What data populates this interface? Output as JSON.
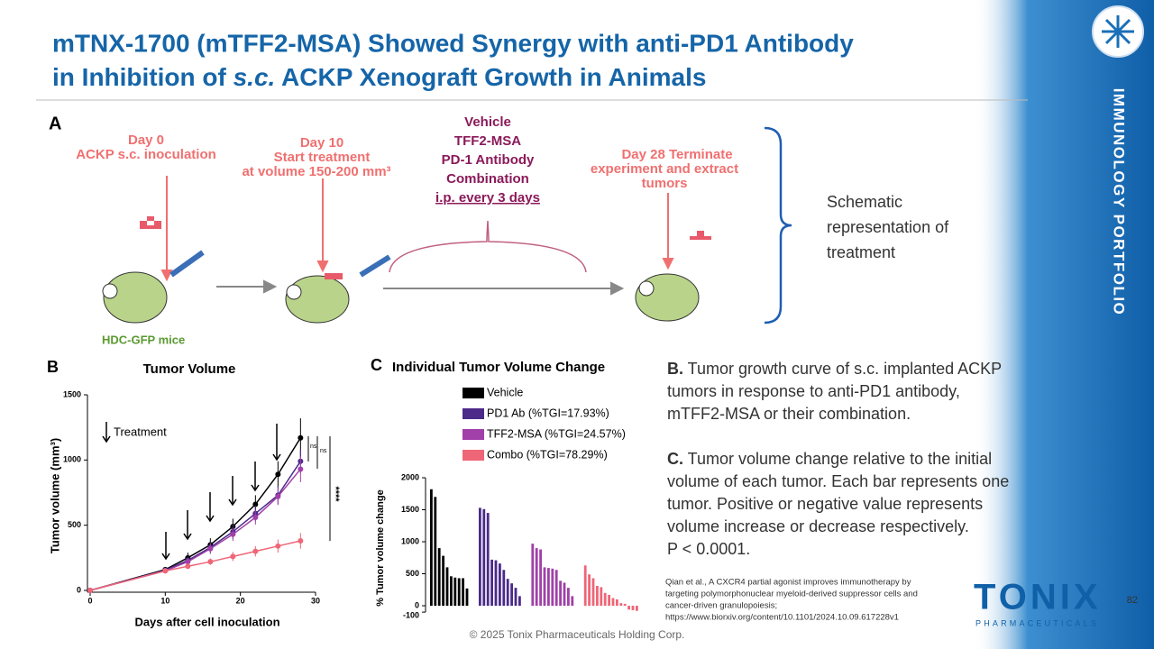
{
  "title": {
    "line1": "mTNX-1700 (mTFF2-MSA) Showed Synergy with anti-PD1 Antibody",
    "line2_start": "in Inhibition of ",
    "line2_italic": "s.c.",
    "line2_end": " ACKP Xenograft Growth in Animals"
  },
  "side_label": "IMMUNOLOGY PORTFOLIO",
  "panel_a": {
    "letter": "A",
    "day0": [
      "Day 0",
      "ACKP s.c. inoculation"
    ],
    "day10": [
      "Day 10",
      "Start treatment",
      "at volume 150-200 mm³"
    ],
    "groups": [
      "Vehicle",
      "TFF2-MSA",
      "PD-1 Antibody",
      "Combination",
      "i.p. every 3 days"
    ],
    "day28": [
      "Day 28 Terminate",
      "experiment and extract",
      "tumors"
    ],
    "mice": "HDC-GFP mice",
    "caption": [
      "Schematic",
      "representation of",
      "treatment"
    ]
  },
  "panel_b_letter": "B",
  "panel_c_letter": "C",
  "chart_data": [
    {
      "type": "line",
      "title": "Tumor Volume",
      "x_label": "Days after cell inoculation",
      "y_label": "Tumor volume (mm³)",
      "x": [
        0,
        10,
        13,
        16,
        19,
        22,
        25,
        28
      ],
      "series": [
        {
          "color": "#000000",
          "values": [
            0,
            160,
            250,
            350,
            490,
            660,
            890,
            1170
          ],
          "errors": [
            0,
            15,
            40,
            50,
            60,
            70,
            100,
            150
          ]
        },
        {
          "color": "#4b2a8a",
          "values": [
            0,
            155,
            230,
            330,
            450,
            590,
            730,
            990
          ],
          "errors": [
            0,
            15,
            30,
            45,
            55,
            60,
            70,
            90
          ]
        },
        {
          "color": "#a040a8",
          "values": [
            0,
            150,
            220,
            320,
            430,
            560,
            720,
            930
          ],
          "errors": [
            0,
            15,
            30,
            40,
            50,
            55,
            65,
            100
          ]
        },
        {
          "color": "#ee6677",
          "values": [
            0,
            150,
            185,
            220,
            260,
            300,
            340,
            380
          ],
          "errors": [
            0,
            10,
            20,
            25,
            35,
            40,
            50,
            60
          ]
        }
      ],
      "xlim": [
        0,
        30
      ],
      "xticks": [
        0,
        10,
        20,
        30
      ],
      "ylim": [
        0,
        1500
      ],
      "yticks": [
        0,
        500,
        1000,
        1500
      ],
      "annotations": {
        "treatment": "Treatment",
        "ns1": "ns",
        "ns2": "ns",
        "stars": "****"
      }
    },
    {
      "type": "bar",
      "title": "Individual Tumor Volume Change",
      "y_label": "% Tumor volume change",
      "series": [
        {
          "name": "Vehicle",
          "color": "#000000",
          "values": [
            1820,
            1700,
            900,
            780,
            600,
            460,
            440,
            430,
            430,
            270
          ]
        },
        {
          "name": "PD1 Ab (%TGI=17.93%)",
          "color": "#4b2a8a",
          "values": [
            1530,
            1510,
            1450,
            720,
            710,
            660,
            560,
            420,
            350,
            280,
            150
          ]
        },
        {
          "name": "TFF2-MSA (%TGI=24.57%)",
          "color": "#a040a8",
          "values": [
            970,
            900,
            880,
            600,
            590,
            580,
            560,
            390,
            360,
            280,
            150
          ]
        },
        {
          "name": "Combo (%TGI=78.29%)",
          "color": "#ee6677",
          "values": [
            630,
            490,
            430,
            310,
            290,
            200,
            170,
            120,
            100,
            40,
            30,
            -60,
            -70,
            -80
          ]
        }
      ],
      "ylim": [
        -100,
        2000
      ],
      "yticks": [
        -100,
        0,
        500,
        1000,
        1500,
        2000
      ]
    }
  ],
  "text_b": {
    "label": "B.",
    "lines": [
      " Tumor growth curve of s.c. implanted ACKP",
      "tumors in response to anti-PD1 antibody,",
      "mTFF2-MSA or their combination."
    ]
  },
  "text_c": {
    "label": "C.",
    "lines": [
      " Tumor volume change relative to the initial",
      "volume of each tumor. Each bar represents one",
      "tumor. Positive or negative value represents",
      "volume increase or decrease respectively.",
      "P < 0.0001."
    ]
  },
  "citation": [
    "Qian et al., A CXCR4 partial agonist improves immunotherapy by",
    "targeting polymorphonuclear myeloid-derived suppressor cells and",
    "cancer-driven granulopoiesis;",
    "https://www.biorxiv.org/content/10.1101/2024.10.09.617228v1"
  ],
  "logo": {
    "name": "TONIX",
    "sub": "PHARMACEUTICALS"
  },
  "page_number": "82",
  "footer": "© 2025 Tonix Pharmaceuticals Holding Corp."
}
